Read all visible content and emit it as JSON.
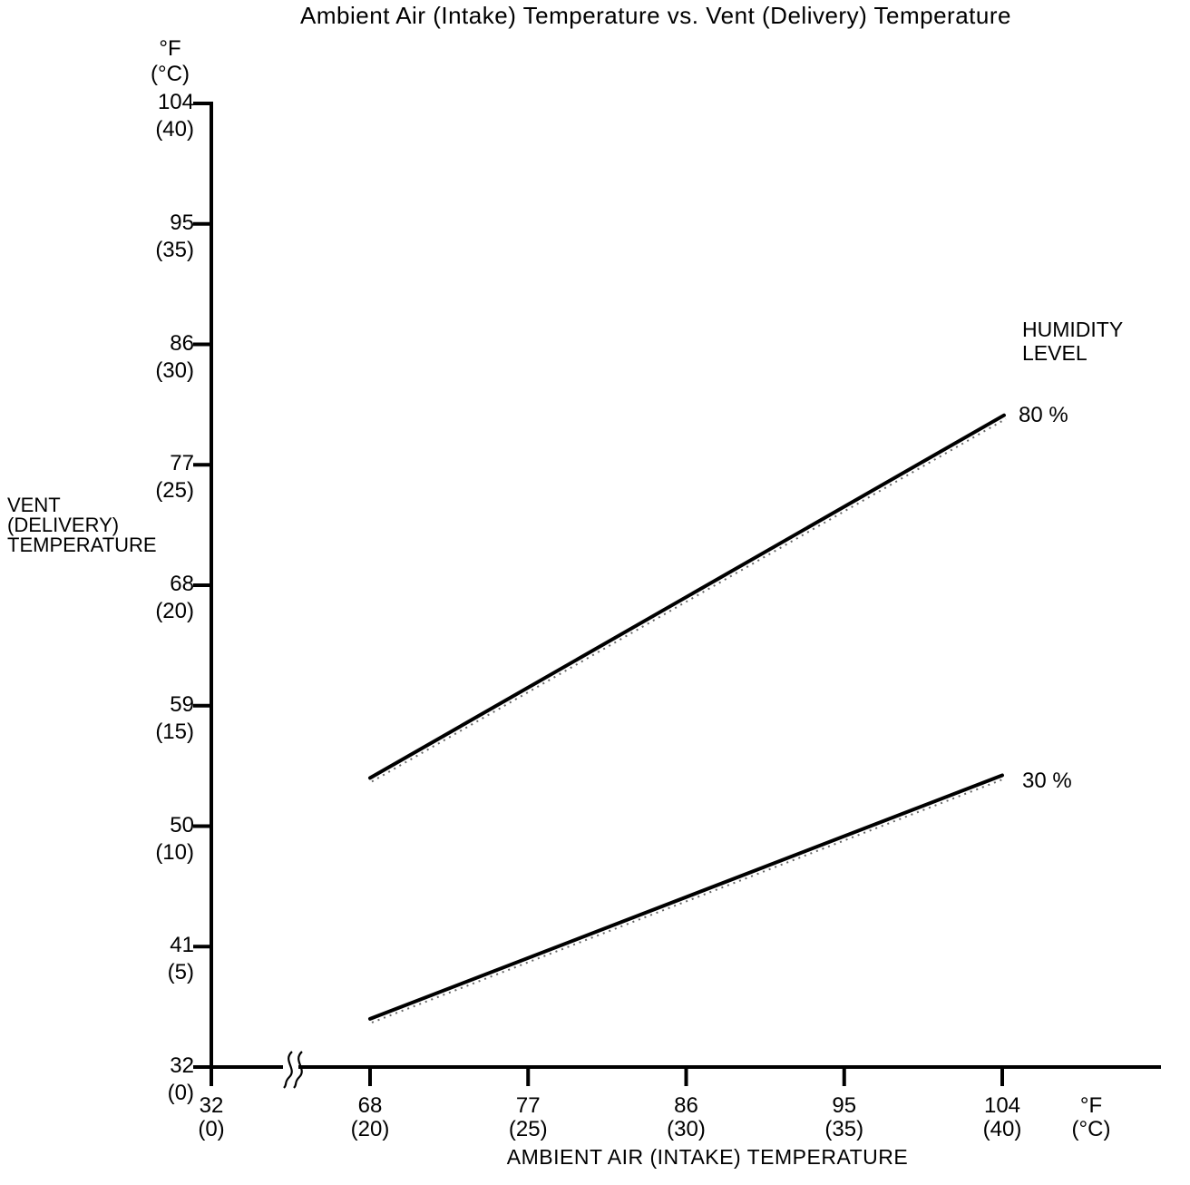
{
  "title": "Ambient Air (Intake) Temperature vs. Vent (Delivery) Temperature",
  "y_axis": {
    "unit_f": "°F",
    "unit_c": "(°C)",
    "title_lines": [
      "VENT",
      "(DELIVERY)",
      "TEMPERATURE"
    ],
    "ticks": [
      {
        "f": "104",
        "c": "(40)"
      },
      {
        "f": "95",
        "c": "(35)"
      },
      {
        "f": "86",
        "c": "(30)"
      },
      {
        "f": "77",
        "c": "(25)"
      },
      {
        "f": "68",
        "c": "(20)"
      },
      {
        "f": "59",
        "c": "(15)"
      },
      {
        "f": "50",
        "c": "(10)"
      },
      {
        "f": "41",
        "c": "(5)"
      },
      {
        "f": "32",
        "c": "(0)"
      }
    ]
  },
  "x_axis": {
    "title": "AMBIENT AIR (INTAKE) TEMPERATURE",
    "unit_f": "°F",
    "unit_c": "(°C)",
    "has_break": true,
    "ticks": [
      {
        "f": "32",
        "c": "(0)"
      },
      {
        "f": "68",
        "c": "(20)"
      },
      {
        "f": "77",
        "c": "(25)"
      },
      {
        "f": "86",
        "c": "(30)"
      },
      {
        "f": "95",
        "c": "(35)"
      },
      {
        "f": "104",
        "c": "(40)"
      }
    ]
  },
  "legend": {
    "title_line1": "HUMIDITY",
    "title_line2": "LEVEL",
    "series": [
      {
        "label": "80 %"
      },
      {
        "label": "30 %"
      }
    ]
  },
  "colors": {
    "ink": "#000000",
    "background": "#ffffff"
  },
  "chart_data": {
    "type": "line",
    "title": "Ambient Air (Intake) Temperature vs. Vent (Delivery) Temperature",
    "xlabel": "AMBIENT AIR (INTAKE) TEMPERATURE",
    "ylabel": "VENT (DELIVERY) TEMPERATURE",
    "units": "°F (°C)",
    "x_ticks_f": [
      32,
      68,
      77,
      86,
      95,
      104
    ],
    "x_ticks_c": [
      0,
      20,
      25,
      30,
      35,
      40
    ],
    "y_ticks_f": [
      32,
      41,
      50,
      59,
      68,
      77,
      86,
      95,
      104
    ],
    "y_ticks_c": [
      0,
      5,
      10,
      15,
      20,
      25,
      30,
      35,
      40
    ],
    "x_axis_break_between_f": [
      32,
      68
    ],
    "legend_title": "HUMIDITY LEVEL",
    "legend_position": "right",
    "grid": false,
    "series": [
      {
        "name": "80 %",
        "points_f": [
          [
            68,
            53.6
          ],
          [
            104.1,
            80.7
          ]
        ],
        "points_c": [
          [
            20,
            12
          ],
          [
            40.1,
            27.1
          ]
        ]
      },
      {
        "name": "30 %",
        "points_f": [
          [
            68,
            35.6
          ],
          [
            104,
            53.8
          ]
        ],
        "points_c": [
          [
            20,
            2
          ],
          [
            40,
            12.1
          ]
        ]
      }
    ]
  }
}
